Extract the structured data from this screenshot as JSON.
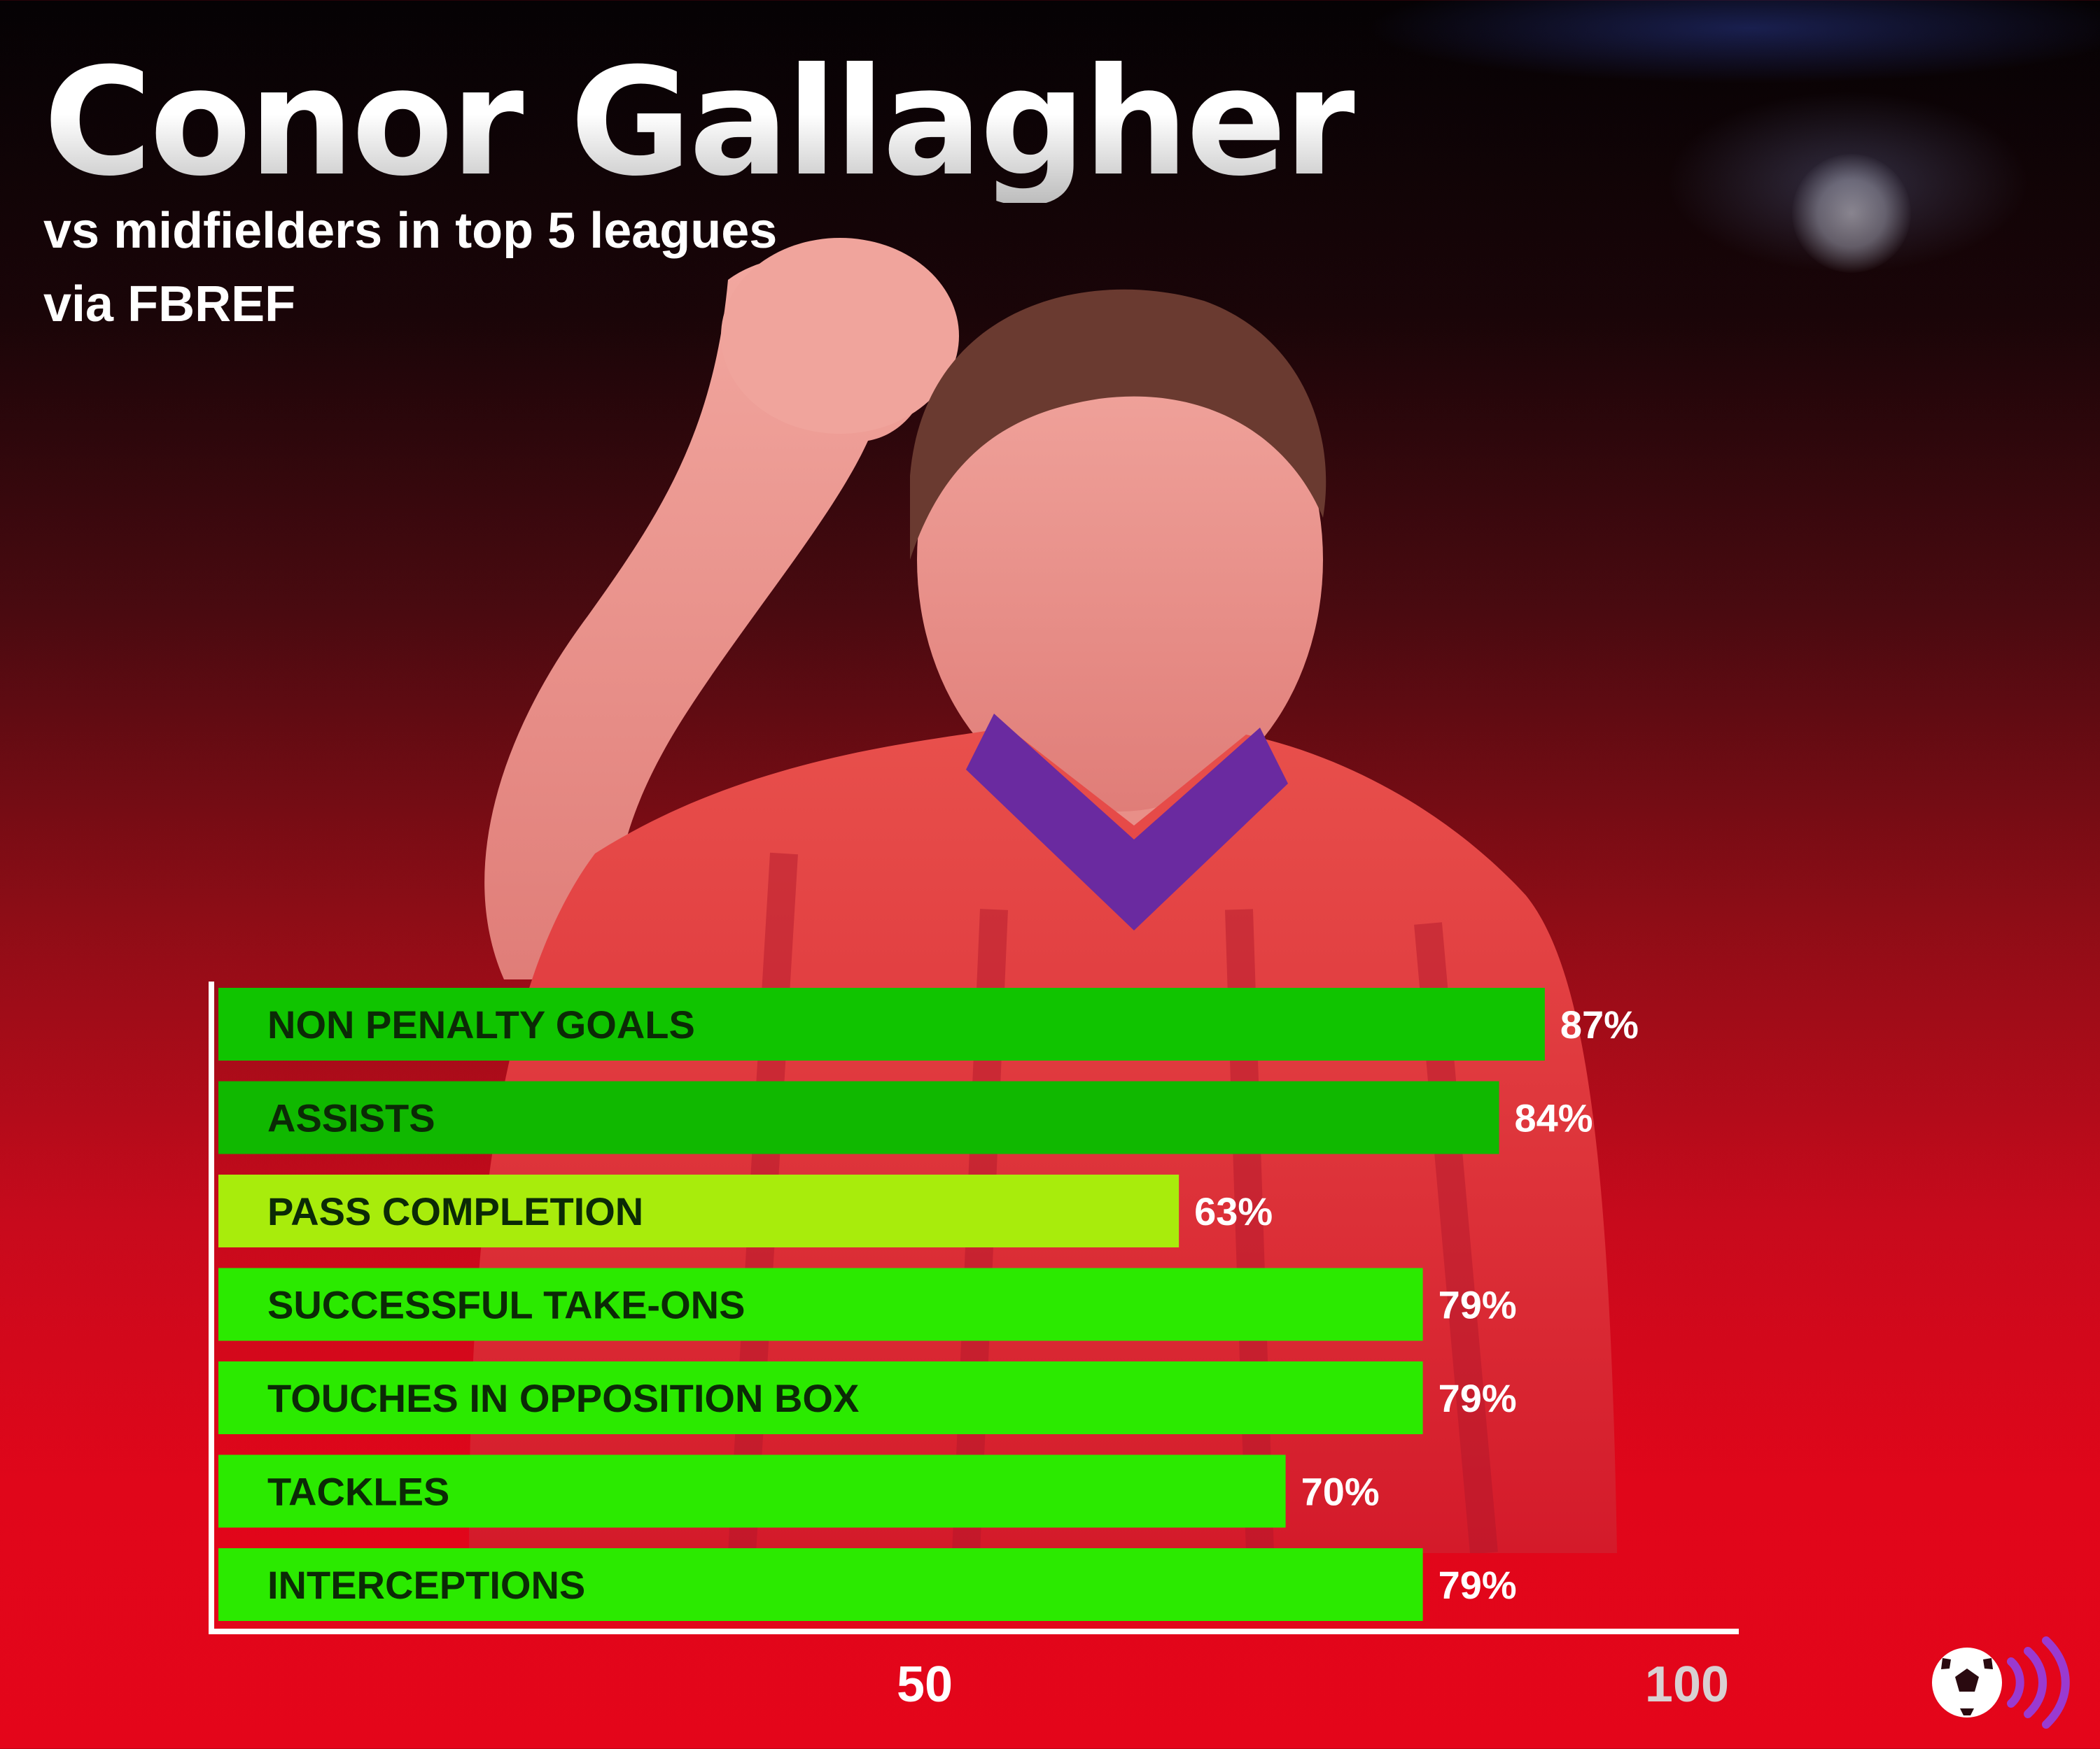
{
  "header": {
    "title": "Conor Gallagher",
    "subtitle": "vs midfielders in top 5 leagues",
    "source": "via FBREF"
  },
  "colors": {
    "background_top": "#050204",
    "background_bottom": "#e4051a",
    "axis": "#ffffff"
  },
  "chart_data": {
    "type": "bar",
    "orientation": "horizontal",
    "title": "Conor Gallagher",
    "subtitle": "vs midfielders in top 5 leagues",
    "xlabel": "",
    "ylabel": "",
    "xlim": [
      0,
      100
    ],
    "x_ticks": [
      {
        "value": 50,
        "label": "50",
        "color": "#ffffff"
      },
      {
        "value": 100,
        "label": "100",
        "color": "#d8d0d2"
      }
    ],
    "grid": false,
    "categories": [
      "NON PENALTY GOALS",
      "ASSISTS",
      "PASS COMPLETION",
      "SUCCESSFUL TAKE-ONS",
      "TOUCHES IN OPPOSITION BOX",
      "TACKLES",
      "INTERCEPTIONS"
    ],
    "values": [
      87,
      84,
      63,
      79,
      79,
      70,
      79
    ],
    "value_labels": [
      "87%",
      "84%",
      "63%",
      "79%",
      "79%",
      "70%",
      "79%"
    ],
    "bar_colors": [
      "#10c400",
      "#10b800",
      "#a8ec0c",
      "#2bea00",
      "#2bea00",
      "#2bea00",
      "#2bea00"
    ]
  }
}
